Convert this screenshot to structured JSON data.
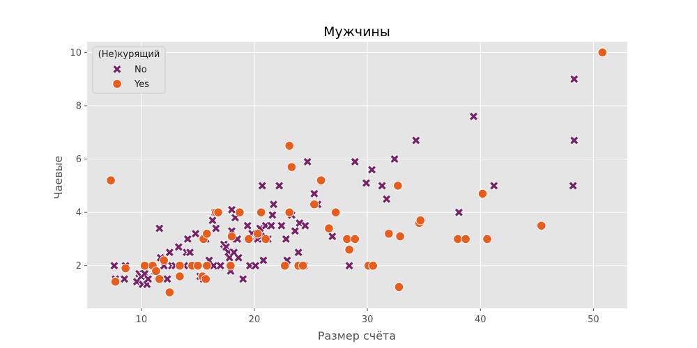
{
  "chart_data": {
    "type": "scatter",
    "title": "Мужчины",
    "xlabel": "Размер счёта",
    "ylabel": "Чаевые",
    "xlim": [
      5.2,
      53.0
    ],
    "ylim": [
      0.4,
      10.4
    ],
    "xticks": [
      10,
      20,
      30,
      40,
      50
    ],
    "yticks": [
      2,
      4,
      6,
      8,
      10
    ],
    "grid": true,
    "background": "#e5e5e5",
    "legend": {
      "title": "(Не)курящий",
      "position": "top-left"
    },
    "series": [
      {
        "name": "No",
        "marker": "x",
        "color": "#7b1f6a",
        "points": [
          [
            7.6,
            2.0
          ],
          [
            7.7,
            1.5
          ],
          [
            8.6,
            2.0
          ],
          [
            8.5,
            1.5
          ],
          [
            9.6,
            1.4
          ],
          [
            9.8,
            1.7
          ],
          [
            10.0,
            1.6
          ],
          [
            10.1,
            1.3
          ],
          [
            10.3,
            1.7
          ],
          [
            10.5,
            1.3
          ],
          [
            10.6,
            1.5
          ],
          [
            11.0,
            2.0
          ],
          [
            11.2,
            1.8
          ],
          [
            11.6,
            3.4
          ],
          [
            11.7,
            2.3
          ],
          [
            12.0,
            2.0
          ],
          [
            12.3,
            1.5
          ],
          [
            12.5,
            2.5
          ],
          [
            12.7,
            2.0
          ],
          [
            13.0,
            2.0
          ],
          [
            13.3,
            2.7
          ],
          [
            13.8,
            2.0
          ],
          [
            14.0,
            2.5
          ],
          [
            14.1,
            3.0
          ],
          [
            14.3,
            2.5
          ],
          [
            14.5,
            2.0
          ],
          [
            14.8,
            3.2
          ],
          [
            15.0,
            2.0
          ],
          [
            15.2,
            1.6
          ],
          [
            15.4,
            2.0
          ],
          [
            15.5,
            1.5
          ],
          [
            15.7,
            3.0
          ],
          [
            16.0,
            2.0
          ],
          [
            16.0,
            2.2
          ],
          [
            16.3,
            3.7
          ],
          [
            16.4,
            2.0
          ],
          [
            16.5,
            4.0
          ],
          [
            16.6,
            3.4
          ],
          [
            17.0,
            2.0
          ],
          [
            17.3,
            2.8
          ],
          [
            17.5,
            2.7
          ],
          [
            17.7,
            2.5
          ],
          [
            17.8,
            2.3
          ],
          [
            17.9,
            1.8
          ],
          [
            18.0,
            4.1
          ],
          [
            18.0,
            3.3
          ],
          [
            18.2,
            2.5
          ],
          [
            18.3,
            3.8
          ],
          [
            18.4,
            3.0
          ],
          [
            18.5,
            3.0
          ],
          [
            18.6,
            2.3
          ],
          [
            19.0,
            1.5
          ],
          [
            19.4,
            3.5
          ],
          [
            19.6,
            2.0
          ],
          [
            19.8,
            3.2
          ],
          [
            20.1,
            2.0
          ],
          [
            20.2,
            3.1
          ],
          [
            20.3,
            3.0
          ],
          [
            20.5,
            3.4
          ],
          [
            20.6,
            3.1
          ],
          [
            20.7,
            5.0
          ],
          [
            20.8,
            2.2
          ],
          [
            21.0,
            3.5
          ],
          [
            21.2,
            3.0
          ],
          [
            21.5,
            3.5
          ],
          [
            21.6,
            3.9
          ],
          [
            21.7,
            4.3
          ],
          [
            22.2,
            5.0
          ],
          [
            22.4,
            3.5
          ],
          [
            22.8,
            3.0
          ],
          [
            22.9,
            2.2
          ],
          [
            23.3,
            3.9
          ],
          [
            23.6,
            3.3
          ],
          [
            23.9,
            2.5
          ],
          [
            24.0,
            3.6
          ],
          [
            24.4,
            2.0
          ],
          [
            24.5,
            3.5
          ],
          [
            24.7,
            5.9
          ],
          [
            25.3,
            4.7
          ],
          [
            25.6,
            4.3
          ],
          [
            26.9,
            3.1
          ],
          [
            28.4,
            2.0
          ],
          [
            28.9,
            5.9
          ],
          [
            29.9,
            5.1
          ],
          [
            30.4,
            5.6
          ],
          [
            31.3,
            5.0
          ],
          [
            31.7,
            4.5
          ],
          [
            32.4,
            6.0
          ],
          [
            34.3,
            6.7
          ],
          [
            38.1,
            4.0
          ],
          [
            39.4,
            7.6
          ],
          [
            41.2,
            5.0
          ],
          [
            48.2,
            5.0
          ],
          [
            48.3,
            6.7
          ],
          [
            48.3,
            9.0
          ]
        ]
      },
      {
        "name": "Yes",
        "marker": "o",
        "color": "#e85d1c",
        "points": [
          [
            7.3,
            5.2
          ],
          [
            7.7,
            1.4
          ],
          [
            8.6,
            1.9
          ],
          [
            10.3,
            2.0
          ],
          [
            11.0,
            2.0
          ],
          [
            11.3,
            1.8
          ],
          [
            11.6,
            1.5
          ],
          [
            12.0,
            2.2
          ],
          [
            12.5,
            1.0
          ],
          [
            13.4,
            2.0
          ],
          [
            13.4,
            1.6
          ],
          [
            14.5,
            2.0
          ],
          [
            15.0,
            2.0
          ],
          [
            15.4,
            1.6
          ],
          [
            15.5,
            3.0
          ],
          [
            15.7,
            1.5
          ],
          [
            15.8,
            2.0
          ],
          [
            15.8,
            3.2
          ],
          [
            16.6,
            4.0
          ],
          [
            16.8,
            4.0
          ],
          [
            17.9,
            2.0
          ],
          [
            18.0,
            3.1
          ],
          [
            18.7,
            4.0
          ],
          [
            19.5,
            3.0
          ],
          [
            20.3,
            3.2
          ],
          [
            20.6,
            4.0
          ],
          [
            21.0,
            3.0
          ],
          [
            22.7,
            2.0
          ],
          [
            23.1,
            6.5
          ],
          [
            23.1,
            4.0
          ],
          [
            23.3,
            5.7
          ],
          [
            23.9,
            2.0
          ],
          [
            24.3,
            2.0
          ],
          [
            25.3,
            4.3
          ],
          [
            25.9,
            5.2
          ],
          [
            26.6,
            3.4
          ],
          [
            27.2,
            4.0
          ],
          [
            28.2,
            3.0
          ],
          [
            28.4,
            2.6
          ],
          [
            28.9,
            3.0
          ],
          [
            30.1,
            2.0
          ],
          [
            30.5,
            2.0
          ],
          [
            31.9,
            3.2
          ],
          [
            32.7,
            5.0
          ],
          [
            32.8,
            1.2
          ],
          [
            32.9,
            3.1
          ],
          [
            34.6,
            3.6
          ],
          [
            34.7,
            3.7
          ],
          [
            38.0,
            3.0
          ],
          [
            38.7,
            3.0
          ],
          [
            40.2,
            4.7
          ],
          [
            40.6,
            3.0
          ],
          [
            45.4,
            3.5
          ],
          [
            50.8,
            10.0
          ]
        ]
      }
    ]
  }
}
